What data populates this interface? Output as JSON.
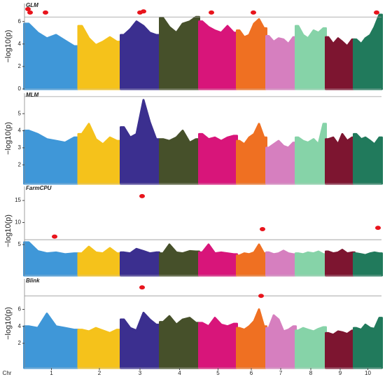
{
  "chart_data": [
    {
      "type": "manhattan",
      "title": "GLM",
      "ylabel": "−log10(p)",
      "xlim": [
        0,
        510
      ],
      "ylim": [
        0,
        7.6
      ],
      "yticks": [
        0,
        2,
        4,
        6
      ],
      "threshold": 6.4,
      "threshold_color": "#999999",
      "series": [
        {
          "color": "#3f97d8",
          "x": [
            6,
            19,
            32,
            45,
            58,
            71
          ],
          "values": [
            5.8,
            5.0,
            4.5,
            4.8,
            4.3,
            3.8
          ]
        },
        {
          "color": "#f5c21b",
          "x": [
            82,
            92,
            102,
            112,
            122,
            132
          ],
          "values": [
            5.6,
            4.5,
            3.9,
            4.2,
            4.6,
            4.2
          ]
        },
        {
          "color": "#3b2f8f",
          "x": [
            142,
            151,
            160,
            170,
            179,
            188
          ],
          "values": [
            4.8,
            5.3,
            6.0,
            5.6,
            5.0,
            4.8
          ]
        },
        {
          "color": "#46502a",
          "x": [
            198,
            207,
            217,
            226,
            236,
            245
          ],
          "values": [
            6.3,
            5.5,
            5.0,
            5.8,
            6.0,
            6.4
          ]
        },
        {
          "color": "#d8157a",
          "x": [
            254,
            263,
            272,
            281,
            290,
            299
          ],
          "values": [
            6.0,
            5.5,
            5.2,
            5.0,
            5.6,
            5.0
          ]
        },
        {
          "color": "#ef7022",
          "x": [
            307,
            314,
            321,
            328,
            335,
            342
          ],
          "values": [
            5.2,
            4.6,
            4.8,
            5.8,
            6.2,
            5.4
          ]
        },
        {
          "color": "#d67fbf",
          "x": [
            349,
            356,
            363,
            370,
            377,
            384
          ],
          "values": [
            4.7,
            4.2,
            4.5,
            4.4,
            4.0,
            4.6
          ]
        },
        {
          "color": "#86d3a8",
          "x": [
            391,
            398,
            405,
            413,
            420,
            427
          ],
          "values": [
            5.6,
            4.8,
            4.5,
            5.2,
            5.0,
            5.4
          ]
        },
        {
          "color": "#7d1530",
          "x": [
            434,
            441,
            448,
            454,
            461,
            468
          ],
          "values": [
            4.6,
            4.0,
            4.5,
            4.2,
            3.8,
            4.4
          ]
        },
        {
          "color": "#217a5c",
          "x": [
            474,
            481,
            487,
            494,
            500,
            507
          ],
          "values": [
            4.4,
            4.0,
            4.5,
            4.8,
            5.5,
            6.6
          ]
        }
      ],
      "hits": {
        "color": "#e8141c",
        "x": [
          5,
          8,
          30,
          165,
          170,
          267,
          327,
          503
        ],
        "values": [
          7.1,
          6.8,
          6.8,
          6.8,
          6.9,
          6.8,
          6.8,
          6.8
        ]
      }
    },
    {
      "type": "manhattan",
      "title": "MLM",
      "ylabel": "−log10(p)",
      "xlim": [
        0,
        510
      ],
      "ylim": [
        0.9,
        6.2
      ],
      "yticks": [
        2,
        3,
        4,
        5
      ],
      "threshold": 6.0,
      "threshold_color": "#999999",
      "series": [
        {
          "color": "#3f97d8",
          "x": [
            6,
            19,
            32,
            45,
            58,
            71
          ],
          "values": [
            4.0,
            3.8,
            3.5,
            3.4,
            3.3,
            3.6
          ]
        },
        {
          "color": "#f5c21b",
          "x": [
            82,
            92,
            102,
            112,
            122,
            132
          ],
          "values": [
            3.8,
            4.4,
            3.5,
            3.2,
            3.6,
            3.4
          ]
        },
        {
          "color": "#3b2f8f",
          "x": [
            142,
            151,
            160,
            170,
            179,
            188
          ],
          "values": [
            4.2,
            3.6,
            3.8,
            5.8,
            4.5,
            3.5
          ]
        },
        {
          "color": "#46502a",
          "x": [
            198,
            207,
            217,
            226,
            236,
            245
          ],
          "values": [
            3.5,
            3.4,
            3.6,
            4.0,
            3.3,
            3.5
          ]
        },
        {
          "color": "#d8157a",
          "x": [
            254,
            263,
            272,
            281,
            290,
            299
          ],
          "values": [
            3.8,
            3.5,
            3.6,
            3.4,
            3.6,
            3.7
          ]
        },
        {
          "color": "#ef7022",
          "x": [
            307,
            314,
            321,
            328,
            335,
            342
          ],
          "values": [
            3.4,
            3.2,
            3.6,
            3.8,
            4.4,
            3.6
          ]
        },
        {
          "color": "#d67fbf",
          "x": [
            349,
            356,
            363,
            370,
            377,
            384
          ],
          "values": [
            3.0,
            3.2,
            3.4,
            3.1,
            3.0,
            3.3
          ]
        },
        {
          "color": "#86d3a8",
          "x": [
            391,
            398,
            405,
            413,
            420,
            427
          ],
          "values": [
            3.6,
            3.4,
            3.3,
            3.5,
            3.2,
            4.4
          ]
        },
        {
          "color": "#7d1530",
          "x": [
            434,
            441,
            448,
            454,
            461,
            468
          ],
          "values": [
            3.5,
            3.6,
            3.2,
            3.8,
            3.4,
            3.6
          ]
        },
        {
          "color": "#217a5c",
          "x": [
            474,
            481,
            487,
            494,
            500,
            507
          ],
          "values": [
            3.8,
            3.5,
            3.6,
            3.4,
            3.2,
            3.6
          ]
        }
      ]
    },
    {
      "type": "manhattan",
      "title": "FarmCPU",
      "ylabel": "−log10(p)",
      "xlim": [
        0,
        510
      ],
      "ylim": [
        -2,
        18.2
      ],
      "yticks": [
        5,
        10,
        15
      ],
      "threshold": 6.1,
      "threshold_color": "#999999",
      "series": [
        {
          "color": "#3f97d8",
          "x": [
            6,
            19,
            32,
            45,
            58,
            71
          ],
          "values": [
            5.5,
            3.5,
            3.0,
            3.2,
            2.8,
            3.0
          ]
        },
        {
          "color": "#f5c21b",
          "x": [
            82,
            92,
            102,
            112,
            122,
            132
          ],
          "values": [
            3.0,
            4.5,
            3.2,
            3.0,
            4.2,
            3.0
          ]
        },
        {
          "color": "#3b2f8f",
          "x": [
            142,
            151,
            160,
            170,
            179,
            188
          ],
          "values": [
            3.2,
            3.0,
            4.0,
            3.5,
            3.0,
            3.2
          ]
        },
        {
          "color": "#46502a",
          "x": [
            198,
            207,
            217,
            226,
            236,
            245
          ],
          "values": [
            3.0,
            5.0,
            3.2,
            3.0,
            3.5,
            3.4
          ]
        },
        {
          "color": "#d8157a",
          "x": [
            254,
            263,
            272,
            281,
            290,
            299
          ],
          "values": [
            3.2,
            5.0,
            3.0,
            3.2,
            3.0,
            2.8
          ]
        },
        {
          "color": "#ef7022",
          "x": [
            307,
            314,
            321,
            328,
            335,
            342
          ],
          "values": [
            2.5,
            3.0,
            2.8,
            3.2,
            5.0,
            3.0
          ]
        },
        {
          "color": "#d67fbf",
          "x": [
            349,
            356,
            363,
            370,
            377,
            384
          ],
          "values": [
            3.2,
            2.8,
            3.0,
            3.6,
            3.0,
            2.8
          ]
        },
        {
          "color": "#86d3a8",
          "x": [
            391,
            398,
            405,
            413,
            420,
            427
          ],
          "values": [
            3.0,
            2.8,
            3.2,
            3.0,
            3.4,
            2.8
          ]
        },
        {
          "color": "#7d1530",
          "x": [
            434,
            441,
            448,
            454,
            461,
            468
          ],
          "values": [
            3.4,
            3.0,
            3.2,
            3.8,
            3.0,
            3.2
          ]
        },
        {
          "color": "#217a5c",
          "x": [
            474,
            481,
            487,
            494,
            500,
            507
          ],
          "values": [
            3.0,
            2.8,
            2.6,
            3.0,
            3.2,
            3.0
          ]
        }
      ],
      "hits": {
        "color": "#e8141c",
        "x": [
          43,
          168,
          340,
          505
        ],
        "values": [
          6.8,
          16.0,
          8.5,
          8.8
        ]
      }
    },
    {
      "type": "manhattan",
      "title": "Blink",
      "ylabel": "−log10(p)",
      "xlim": [
        0,
        510
      ],
      "ylim": [
        -0.9,
        9.6
      ],
      "yticks": [
        2,
        4,
        6
      ],
      "threshold": 7.6,
      "threshold_color": "#999999",
      "xlabel": "Chr",
      "xticks": [
        {
          "value": 38.5,
          "label": "1"
        },
        {
          "value": 107,
          "label": "2"
        },
        {
          "value": 165,
          "label": "3"
        },
        {
          "value": 221.5,
          "label": "4"
        },
        {
          "value": 276.5,
          "label": "5"
        },
        {
          "value": 324,
          "label": "6"
        },
        {
          "value": 366,
          "label": "7"
        },
        {
          "value": 409,
          "label": "8"
        },
        {
          "value": 451,
          "label": "9"
        },
        {
          "value": 490.5,
          "label": "10"
        }
      ],
      "series": [
        {
          "color": "#3f97d8",
          "x": [
            6,
            19,
            32,
            45,
            58,
            71
          ],
          "values": [
            4.0,
            3.8,
            5.5,
            4.0,
            3.8,
            3.6
          ]
        },
        {
          "color": "#f5c21b",
          "x": [
            82,
            92,
            102,
            112,
            122,
            132
          ],
          "values": [
            3.6,
            3.4,
            3.8,
            3.5,
            3.2,
            3.6
          ]
        },
        {
          "color": "#3b2f8f",
          "x": [
            142,
            151,
            160,
            170,
            179,
            188
          ],
          "values": [
            4.8,
            3.8,
            3.5,
            5.6,
            4.8,
            4.2
          ]
        },
        {
          "color": "#46502a",
          "x": [
            198,
            207,
            217,
            226,
            236,
            245
          ],
          "values": [
            4.5,
            5.2,
            4.2,
            4.8,
            5.0,
            4.4
          ]
        },
        {
          "color": "#d8157a",
          "x": [
            254,
            263,
            272,
            281,
            290,
            299
          ],
          "values": [
            4.4,
            4.0,
            5.0,
            4.2,
            4.0,
            4.3
          ]
        },
        {
          "color": "#ef7022",
          "x": [
            307,
            314,
            321,
            328,
            335,
            342
          ],
          "values": [
            3.8,
            3.6,
            4.0,
            4.6,
            6.0,
            4.0
          ]
        },
        {
          "color": "#d67fbf",
          "x": [
            349,
            356,
            363,
            370,
            377,
            384
          ],
          "values": [
            3.8,
            5.3,
            4.8,
            3.4,
            3.6,
            4.0
          ]
        },
        {
          "color": "#86d3a8",
          "x": [
            391,
            398,
            405,
            413,
            420,
            427
          ],
          "values": [
            3.5,
            3.8,
            3.6,
            3.4,
            3.7,
            3.9
          ]
        },
        {
          "color": "#7d1530",
          "x": [
            434,
            441,
            448,
            454,
            461,
            468
          ],
          "values": [
            3.2,
            3.0,
            3.4,
            3.3,
            3.1,
            3.5
          ]
        },
        {
          "color": "#217a5c",
          "x": [
            474,
            481,
            487,
            494,
            500,
            507
          ],
          "values": [
            3.8,
            3.6,
            4.2,
            3.8,
            3.7,
            5.0
          ]
        }
      ],
      "hits": {
        "color": "#e8141c",
        "x": [
          168,
          338
        ],
        "values": [
          8.6,
          7.6
        ]
      }
    }
  ]
}
